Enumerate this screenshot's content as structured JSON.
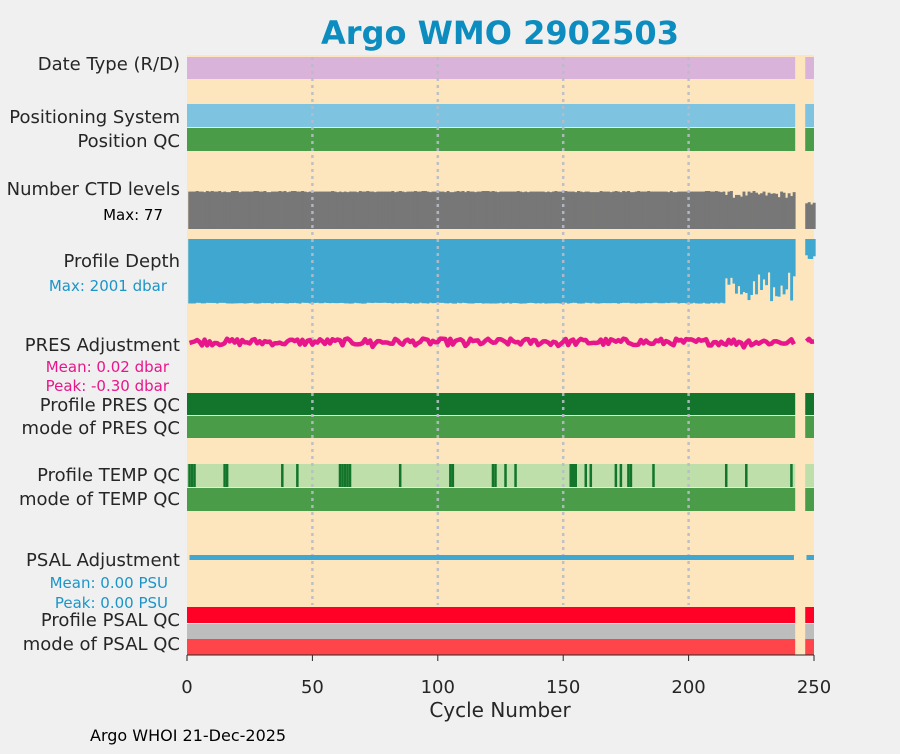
{
  "chart_data": {
    "type": "bar",
    "title": "Argo WMO 2902503",
    "xlabel": "Cycle Number",
    "xlim": [
      0,
      250
    ],
    "xticks": [
      0,
      50,
      100,
      150,
      200,
      250
    ],
    "footer": "Argo WHOI 21-Dec-2025",
    "gap_cycles": [
      243,
      244,
      245,
      246
    ],
    "last_cycle": 250,
    "rows": {
      "date_type": {
        "label": "Date Type (R/D)",
        "color": "#d9b3d9"
      },
      "positioning": {
        "label": "Positioning System",
        "color": "#7ec3e0"
      },
      "position_qc": {
        "label": "Position QC",
        "color": "#4a9c48"
      },
      "ctd_levels": {
        "label": "Number CTD levels",
        "max_label": "Max: 77",
        "max": 77,
        "color": "#777777"
      },
      "profile_depth": {
        "label": "Profile Depth",
        "max_label": "Max: 2001 dbar",
        "max": 2001,
        "color": "#40a8d0",
        "label_color": "#1b95c8"
      },
      "pres_adj": {
        "label": "PRES Adjustment",
        "mean_label": "Mean: 0.02 dbar",
        "peak_label": "Peak: -0.30 dbar",
        "mean": 0.02,
        "peak": -0.3,
        "color": "#e8168b"
      },
      "profile_pres_qc": {
        "label": "Profile PRES QC",
        "color": "#13752b"
      },
      "mode_pres_qc": {
        "label": "mode of PRES QC",
        "color": "#4a9c48"
      },
      "profile_temp_qc": {
        "label": "Profile TEMP QC",
        "color": "#bedeaa",
        "flag_color": "#13752b",
        "flag_cycles": [
          1,
          2,
          3,
          15,
          16,
          38,
          44,
          61,
          62,
          63,
          64,
          65,
          85,
          105,
          106,
          122,
          123,
          127,
          131,
          153,
          154,
          155,
          159,
          161,
          171,
          173,
          176,
          177,
          186,
          215,
          223,
          241
        ]
      },
      "mode_temp_qc": {
        "label": "mode of TEMP QC",
        "color": "#4a9c48"
      },
      "psal_adj": {
        "label": "PSAL Adjustment",
        "mean_label": "Mean: 0.00 PSU",
        "peak_label": "Peak: 0.00 PSU",
        "mean": 0.0,
        "peak": 0.0,
        "color": "#40a8d0",
        "label_color": "#1b95c8"
      },
      "profile_psal_qc": {
        "label": "Profile PSAL QC",
        "color": "#ff0026"
      },
      "mode_psal_qc": {
        "label": "mode of PSAL QC",
        "color": "#ff4549"
      }
    }
  }
}
